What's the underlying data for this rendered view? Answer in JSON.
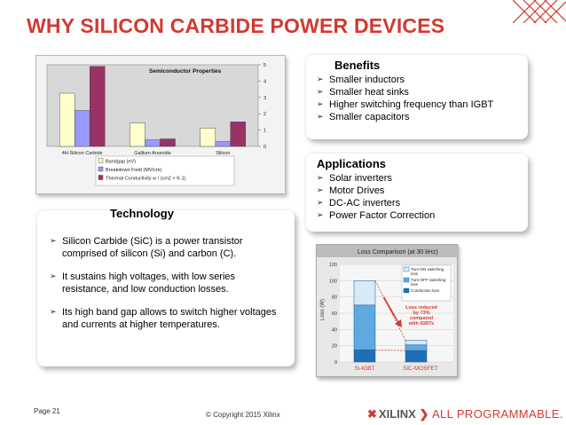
{
  "title": "WHY SILICON CARBIDE POWER DEVICES",
  "benefits": {
    "heading": "Benefits",
    "items": [
      "Smaller inductors",
      "Smaller heat sinks",
      "Higher switching frequency than IGBT",
      "Smaller capacitors"
    ]
  },
  "applications": {
    "heading": "Applications",
    "items": [
      "Solar inverters",
      "Motor Drives",
      "DC-AC inverters",
      "Power Factor Correction"
    ]
  },
  "technology": {
    "heading": "Technology",
    "items": [
      "Silicon Carbide (SiC) is  a power transistor comprised of silicon (Si) and carbon (C).",
      "It sustains high voltages, with low series resistance, and low conduction losses.",
      "Its high band gap allows to switch higher voltages and currents at higher temperatures."
    ]
  },
  "footer": {
    "page": "Page 21",
    "copyright": "© Copyright 2015 Xilinx",
    "brand_name": "XILINX",
    "tagline": "ALL PROGRAMMABLE."
  },
  "colors": {
    "title": "#d23a2f",
    "brand_red": "#d23a2f"
  },
  "chart_data": [
    {
      "type": "bar",
      "title": "Semiconductor Properties",
      "categories": [
        "4H-Silicon Carbide",
        "Gallium Arsenide",
        "Silicon"
      ],
      "series": [
        {
          "name": "Bandgap (eV)",
          "color": "#ffffcc",
          "values": [
            3.26,
            1.43,
            1.12
          ]
        },
        {
          "name": "Breakdown Field (MV/cm)",
          "color": "#9999ff",
          "values": [
            2.2,
            0.4,
            0.3
          ]
        },
        {
          "name": "Thermal Conductivity w / (cm2 × K-1)",
          "color": "#993366",
          "values": [
            4.9,
            0.46,
            1.5
          ]
        }
      ],
      "legend_order": [
        "Bandgap (eV)",
        "Breakdown Field (MV/cm)",
        "Thermal Conductivity w / (cm2 × K-1)"
      ],
      "yticks": [
        "0",
        "1",
        "2",
        "3",
        "4",
        "5"
      ],
      "ylim": [
        0,
        5
      ],
      "legend": "bottom"
    },
    {
      "type": "bar",
      "title": "Loss Comparison (at 30 kHz)",
      "ylabel": "Loss (W)",
      "categories": [
        "Si-IGBT",
        "SiC-MOSFET"
      ],
      "yticks": [
        "0",
        "20",
        "40",
        "60",
        "80",
        "100",
        "120"
      ],
      "ylim": [
        0,
        120
      ],
      "series": [
        {
          "name": "Conduction loss",
          "color": "#1f6fb4",
          "values": [
            15,
            14
          ]
        },
        {
          "name": "Turn-OFF switching loss",
          "color": "#5fa8e0",
          "values": [
            55,
            7
          ]
        },
        {
          "name": "Turn-ON switching loss",
          "color": "#d6eaf8",
          "values": [
            30,
            6
          ]
        }
      ],
      "legend": "top-right",
      "annotation": "Loss reduced by 73% compared with IGBTs"
    }
  ]
}
